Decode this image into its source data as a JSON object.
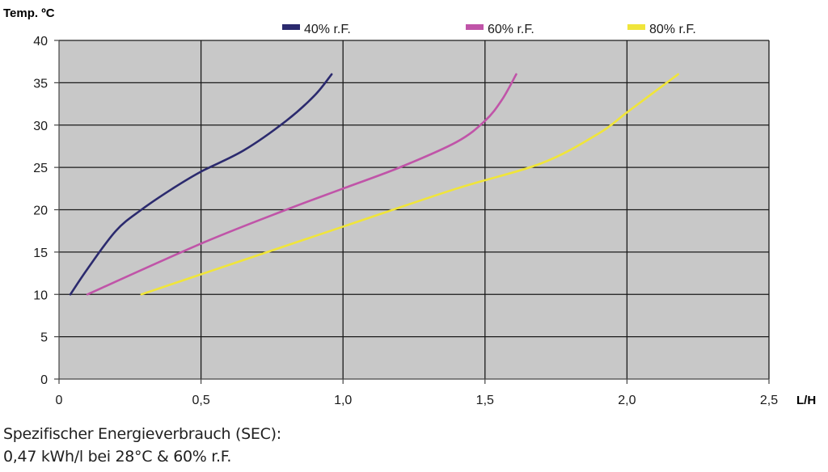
{
  "chart_data": {
    "type": "line",
    "ylabel": "Temp. ºC",
    "xlabel": "L/H",
    "xlim": [
      0,
      2.5
    ],
    "ylim": [
      0,
      40
    ],
    "x_ticks": [
      {
        "value": 0,
        "label": "0"
      },
      {
        "value": 0.5,
        "label": "0,5"
      },
      {
        "value": 1.0,
        "label": "1,0"
      },
      {
        "value": 1.5,
        "label": "1,5"
      },
      {
        "value": 2.0,
        "label": "2,0"
      },
      {
        "value": 2.5,
        "label": "2,5"
      }
    ],
    "y_ticks": [
      0,
      5,
      10,
      15,
      20,
      25,
      30,
      35,
      40
    ],
    "grid": true,
    "plot_background": "#c8c8c8",
    "legend_position": "top",
    "series": [
      {
        "name": "40% r.F.",
        "color": "#2b2a6e",
        "points": [
          [
            0.04,
            10
          ],
          [
            0.1,
            13
          ],
          [
            0.2,
            17.5
          ],
          [
            0.29,
            20
          ],
          [
            0.4,
            22.5
          ],
          [
            0.5,
            24.5
          ],
          [
            0.65,
            27
          ],
          [
            0.8,
            30.5
          ],
          [
            0.9,
            33.5
          ],
          [
            0.96,
            36
          ]
        ]
      },
      {
        "name": "60% r.F.",
        "color": "#c054a8",
        "points": [
          [
            0.1,
            10
          ],
          [
            0.5,
            16
          ],
          [
            0.8,
            20
          ],
          [
            1.0,
            22.5
          ],
          [
            1.2,
            25
          ],
          [
            1.4,
            28
          ],
          [
            1.5,
            30.5
          ],
          [
            1.56,
            33
          ],
          [
            1.61,
            36
          ]
        ]
      },
      {
        "name": "80% r.F.",
        "color": "#f0e53a",
        "points": [
          [
            0.29,
            10
          ],
          [
            0.6,
            13.5
          ],
          [
            1.0,
            18
          ],
          [
            1.4,
            22.5
          ],
          [
            1.7,
            25.5
          ],
          [
            1.9,
            29
          ],
          [
            2.0,
            31.5
          ],
          [
            2.1,
            34
          ],
          [
            2.18,
            36
          ]
        ]
      }
    ]
  },
  "caption": {
    "line1": "Spezifischer Energieverbrauch (SEC):",
    "line2": "0,47 kWh/l bei 28°C & 60% r.F."
  }
}
